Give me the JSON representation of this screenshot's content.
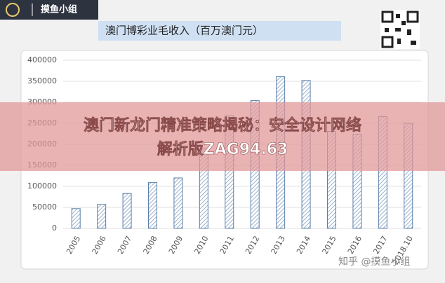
{
  "logo": {
    "text": "摸鱼小组"
  },
  "chart_data": {
    "type": "bar",
    "title": "澳门博彩业毛收入（百万澳门元）",
    "categories": [
      "2005",
      "2006",
      "2007",
      "2008",
      "2009",
      "2010",
      "2011",
      "2012",
      "2013",
      "2014",
      "2015",
      "2016",
      "2017",
      "2018.10"
    ],
    "values": [
      47000,
      57000,
      83000,
      109000,
      120000,
      189000,
      268000,
      304000,
      361000,
      352000,
      231000,
      224000,
      266000,
      250000
    ],
    "color": "#5b7fa8",
    "ylim": [
      0,
      400000
    ],
    "yticks": [
      0,
      50000,
      100000,
      150000,
      200000,
      250000,
      300000,
      350000,
      400000
    ],
    "grid": true
  },
  "banner": {
    "lines": [
      "澳门新龙门精准策略揭秘：安全设计网络",
      "解析版ZAG94.63"
    ]
  },
  "watermark": {
    "text": "知乎 @摸鱼小组"
  }
}
